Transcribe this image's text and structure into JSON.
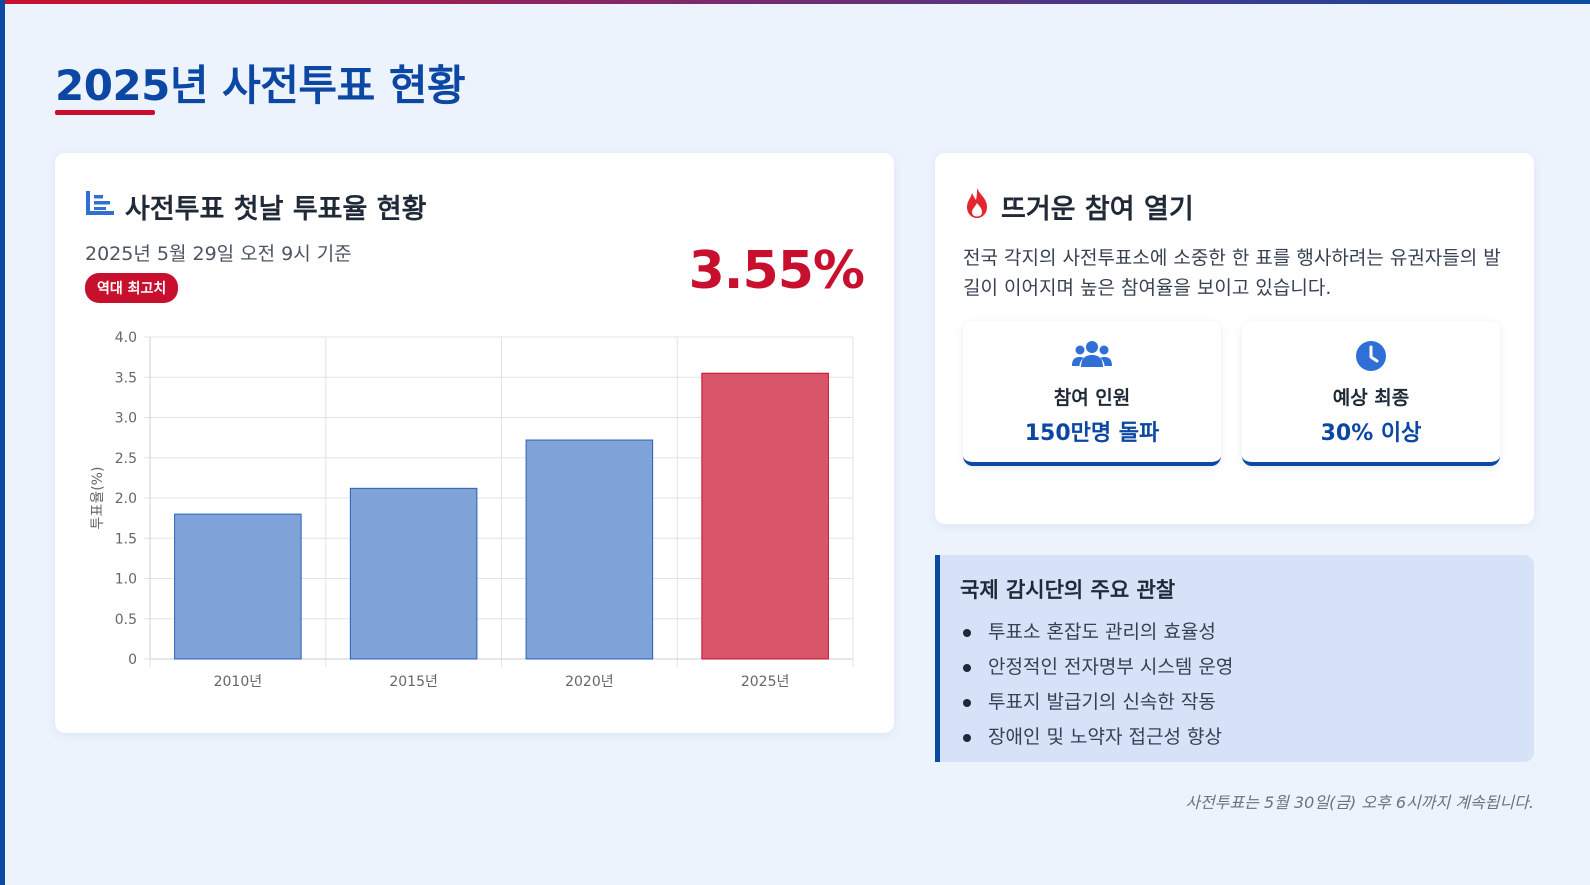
{
  "page": {
    "title": "2025년 사전투표 현황",
    "footnote": "사전투표는 5월 30일(금) 오후 6시까지 계속됩니다."
  },
  "chart_card": {
    "heading": "사전투표 첫날 투표율 현황",
    "icon": "bar-chart-icon",
    "subtitle": "2025년 5월 29일 오전 9시 기준",
    "badge": "역대 최고치",
    "highlight_value": "3.55%"
  },
  "hot_card": {
    "heading": "뜨거운 참여 열기",
    "icon": "fire-icon",
    "description": "전국 각지의 사전투표소에 소중한 한 표를 행사하려는 유권자들의 발길이 이어지며 높은 참여율을 보이고 있습니다.",
    "stats": [
      {
        "icon": "users-icon",
        "label": "참여 인원",
        "value": "150만명 돌파"
      },
      {
        "icon": "clock-icon",
        "label": "예상 최종",
        "value": "30% 이상"
      }
    ]
  },
  "observations": {
    "title": "국제 감시단의 주요 관찰",
    "items": [
      "투표소 혼잡도 관리의 효율성",
      "안정적인 전자명부 시스템 운영",
      "투표지 발급기의 신속한 작동",
      "장애인 및 노약자 접근성 향상"
    ]
  },
  "colors": {
    "primary_blue": "#0b47a3",
    "accent_red": "#c8102e",
    "bar_blue": "#7fa3d9",
    "bar_red": "#d9566a"
  },
  "chart_data": {
    "type": "bar",
    "categories": [
      "2010년",
      "2015년",
      "2020년",
      "2025년"
    ],
    "values": [
      1.8,
      2.12,
      2.72,
      3.55
    ],
    "highlight_index": 3,
    "ylabel": "투표율(%)",
    "ylim": [
      0,
      4.0
    ],
    "yticks": [
      "0",
      "0.5",
      "1.0",
      "1.5",
      "2.0",
      "2.5",
      "3.0",
      "3.5",
      "4.0"
    ],
    "grid": true
  }
}
